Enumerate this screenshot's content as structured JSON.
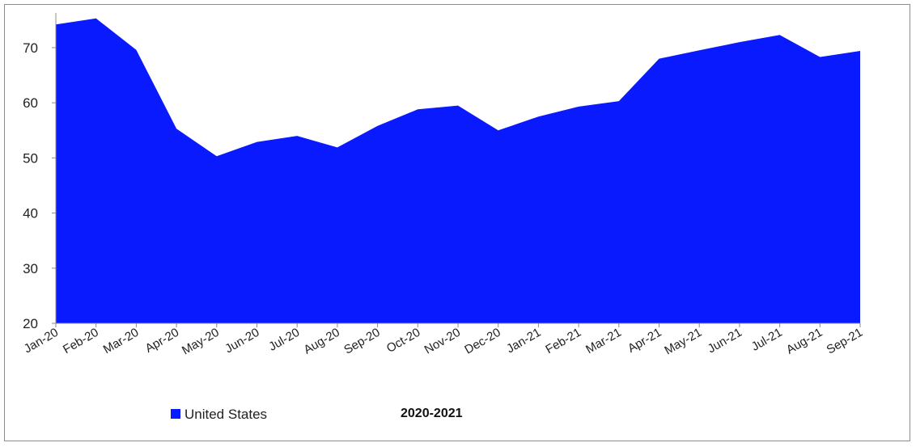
{
  "chart_data": {
    "type": "area",
    "categories": [
      "Jan-20",
      "Feb-20",
      "Mar-20",
      "Apr-20",
      "May-20",
      "Jun-20",
      "Jul-20",
      "Aug-20",
      "Sep-20",
      "Oct-20",
      "Nov-20",
      "Dec-20",
      "Jan-21",
      "Feb-21",
      "Mar-21",
      "Apr-21",
      "May-21",
      "Jun-21",
      "Jul-21",
      "Aug-21",
      "Sep-21"
    ],
    "series": [
      {
        "name": "United States",
        "color": "#0a1aff",
        "values": [
          74.2,
          75.3,
          69.6,
          55.3,
          50.3,
          52.9,
          54.0,
          51.9,
          55.8,
          58.8,
          59.5,
          55.0,
          57.5,
          59.3,
          60.3,
          68.0,
          69.5,
          71.0,
          72.3,
          68.3,
          69.4
        ]
      }
    ],
    "title": "2020-2021",
    "xlabel": "",
    "ylabel": "",
    "ylim": [
      20,
      76
    ],
    "yticks": [
      20,
      30,
      40,
      50,
      60,
      70
    ],
    "grid": false,
    "legend_position": "bottom-left"
  }
}
